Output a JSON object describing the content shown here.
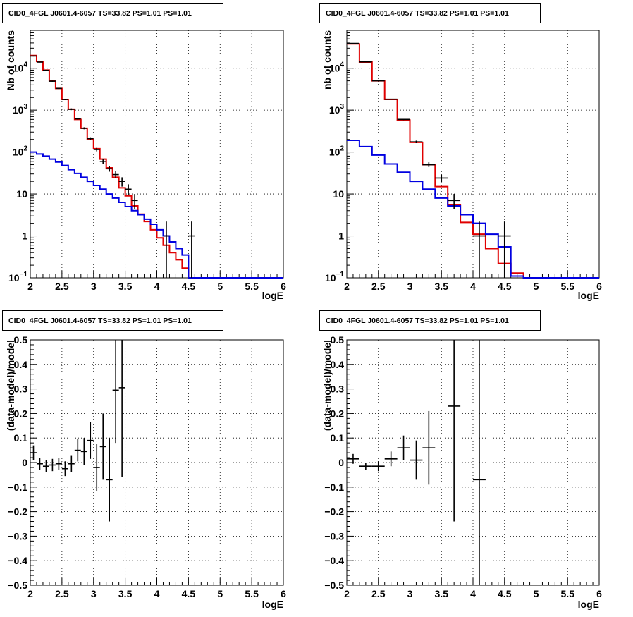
{
  "chart_data": [
    {
      "type": "line",
      "title": "CID0_4FGL J0601.4-6057 TS=33.82 PS=1.01 PS=1.01",
      "xlabel": "logE",
      "ylabel": "Nb of counts",
      "xlim": [
        2,
        6
      ],
      "ylim": [
        0.1,
        80000
      ],
      "yscale": "log",
      "grid": true,
      "xticks": [
        "2",
        "2.5",
        "3",
        "3.5",
        "4",
        "4.5",
        "5",
        "5.5",
        "6"
      ],
      "yticks": [
        {
          "v": 0.1,
          "base": "10",
          "exp": "−1"
        },
        {
          "v": 1,
          "text": "1"
        },
        {
          "v": 10,
          "text": "10"
        },
        {
          "v": 100,
          "base": "10",
          "exp": "2"
        },
        {
          "v": 1000,
          "base": "10",
          "exp": "3"
        },
        {
          "v": 10000,
          "base": "10",
          "exp": "4"
        }
      ],
      "bin_edges": [
        2.0,
        2.1,
        2.2,
        2.3,
        2.4,
        2.5,
        2.6,
        2.7,
        2.8,
        2.9,
        3.0,
        3.1,
        3.2,
        3.3,
        3.4,
        3.5,
        3.6,
        3.7,
        3.8,
        3.9,
        4.0,
        4.1,
        4.2,
        4.3,
        4.4,
        4.5,
        4.6,
        4.7,
        4.8,
        4.9,
        5.0,
        5.1,
        5.2,
        5.3,
        5.4,
        5.5,
        5.6,
        5.7,
        5.8,
        5.9,
        6.0
      ],
      "series": [
        {
          "color": "#e00000",
          "values": [
            20000,
            14500,
            9000,
            5000,
            3300,
            1800,
            1050,
            600,
            370,
            200,
            120,
            68,
            42,
            25,
            14,
            9,
            5.2,
            3.3,
            2.2,
            1.4,
            0.9,
            0.6,
            0.4,
            0.27,
            0.17,
            0.1,
            0.1,
            0.1,
            0.1,
            0.1,
            0.1,
            0.1,
            0.1,
            0.1,
            0.1,
            0.1,
            0.1,
            0.1,
            0.1,
            0.1
          ]
        },
        {
          "color": "#0000e0",
          "values": [
            100,
            90,
            80,
            68,
            58,
            48,
            38,
            31,
            25,
            20,
            16,
            13,
            10,
            8,
            6.3,
            5,
            4,
            3.2,
            2.5,
            1.9,
            1.4,
            1.0,
            0.72,
            0.5,
            0.35,
            0.1,
            0.1,
            0.1,
            0.1,
            0.1,
            0.1,
            0.1,
            0.1,
            0.1,
            0.1,
            0.1,
            0.1,
            0.1,
            0.1,
            0.1
          ]
        }
      ],
      "points": [
        {
          "x": 2.05,
          "y": 19500,
          "hw": 0.05,
          "lo": 19000,
          "hi": 20000
        },
        {
          "x": 2.15,
          "y": 14000,
          "hw": 0.05,
          "lo": 13700,
          "hi": 14300
        },
        {
          "x": 2.25,
          "y": 8900,
          "hw": 0.05,
          "lo": 8700,
          "hi": 9100
        },
        {
          "x": 2.35,
          "y": 4900,
          "hw": 0.05,
          "lo": 4750,
          "hi": 5050
        },
        {
          "x": 2.45,
          "y": 3300,
          "hw": 0.05,
          "lo": 3200,
          "hi": 3400
        },
        {
          "x": 2.55,
          "y": 1800,
          "hw": 0.05,
          "lo": 1730,
          "hi": 1870
        },
        {
          "x": 2.65,
          "y": 1050,
          "hw": 0.05,
          "lo": 1000,
          "hi": 1100
        },
        {
          "x": 2.75,
          "y": 620,
          "hw": 0.05,
          "lo": 595,
          "hi": 645
        },
        {
          "x": 2.85,
          "y": 370,
          "hw": 0.05,
          "lo": 350,
          "hi": 390
        },
        {
          "x": 2.95,
          "y": 210,
          "hw": 0.05,
          "lo": 195,
          "hi": 225
        },
        {
          "x": 3.05,
          "y": 115,
          "hw": 0.05,
          "lo": 104,
          "hi": 126
        },
        {
          "x": 3.15,
          "y": 60,
          "hw": 0.05,
          "lo": 52,
          "hi": 68
        },
        {
          "x": 3.25,
          "y": 40,
          "hw": 0.05,
          "lo": 34,
          "hi": 46
        },
        {
          "x": 3.35,
          "y": 29,
          "hw": 0.05,
          "lo": 24,
          "hi": 35
        },
        {
          "x": 3.45,
          "y": 20,
          "hw": 0.05,
          "lo": 15,
          "hi": 25
        },
        {
          "x": 3.55,
          "y": 13,
          "hw": 0.05,
          "lo": 9.5,
          "hi": 17
        },
        {
          "x": 3.65,
          "y": 7,
          "hw": 0.05,
          "lo": 4.4,
          "hi": 10
        },
        {
          "x": 4.15,
          "y": 1,
          "hw": 0.05,
          "lo": 0.1,
          "hi": 2.2
        },
        {
          "x": 4.55,
          "y": 1,
          "hw": 0.05,
          "lo": 0.1,
          "hi": 2.2
        }
      ]
    },
    {
      "type": "line",
      "title": "CID0_4FGL J0601.4-6057 TS=33.82 PS=1.01 PS=1.01",
      "xlabel": "logE",
      "ylabel": "nb of counts",
      "xlim": [
        2,
        6
      ],
      "ylim": [
        0.1,
        80000
      ],
      "yscale": "log",
      "grid": true,
      "xticks": [
        "2",
        "2.5",
        "3",
        "3.5",
        "4",
        "4.5",
        "5",
        "5.5",
        "6"
      ],
      "yticks": [
        {
          "v": 0.1,
          "base": "10",
          "exp": "−1"
        },
        {
          "v": 1,
          "text": "1"
        },
        {
          "v": 10,
          "text": "10"
        },
        {
          "v": 100,
          "base": "10",
          "exp": "2"
        },
        {
          "v": 1000,
          "base": "10",
          "exp": "3"
        },
        {
          "v": 10000,
          "base": "10",
          "exp": "4"
        }
      ],
      "bin_edges": [
        2.0,
        2.2,
        2.4,
        2.6,
        2.8,
        3.0,
        3.2,
        3.4,
        3.6,
        3.8,
        4.0,
        4.2,
        4.4,
        4.6,
        4.8,
        5.0,
        5.2,
        5.4,
        5.6,
        5.8,
        6.0
      ],
      "series": [
        {
          "color": "#e00000",
          "values": [
            38000,
            14000,
            5000,
            1800,
            580,
            170,
            50,
            15,
            5.5,
            2.1,
            1.1,
            0.5,
            0.22,
            0.13,
            0.1,
            0.1,
            0.1,
            0.1,
            0.1,
            0.1
          ]
        },
        {
          "color": "#0000e0",
          "values": [
            190,
            135,
            85,
            52,
            33,
            20,
            13,
            8,
            5.2,
            3.2,
            2,
            1.1,
            0.55,
            0.11,
            0.1,
            0.1,
            0.1,
            0.1,
            0.1,
            0.1
          ]
        }
      ],
      "points": [
        {
          "x": 2.1,
          "y": 39000,
          "hw": 0.1,
          "lo": 38500,
          "hi": 39500
        },
        {
          "x": 2.3,
          "y": 14200,
          "hw": 0.1,
          "lo": 14000,
          "hi": 14400
        },
        {
          "x": 2.5,
          "y": 5000,
          "hw": 0.1,
          "lo": 4900,
          "hi": 5100
        },
        {
          "x": 2.7,
          "y": 1820,
          "hw": 0.1,
          "lo": 1780,
          "hi": 1860
        },
        {
          "x": 2.9,
          "y": 600,
          "hw": 0.1,
          "lo": 580,
          "hi": 620
        },
        {
          "x": 3.1,
          "y": 175,
          "hw": 0.1,
          "lo": 163,
          "hi": 187
        },
        {
          "x": 3.3,
          "y": 50,
          "hw": 0.1,
          "lo": 44,
          "hi": 57
        },
        {
          "x": 3.5,
          "y": 24,
          "hw": 0.1,
          "lo": 19,
          "hi": 29
        },
        {
          "x": 3.7,
          "y": 7,
          "hw": 0.1,
          "lo": 4.4,
          "hi": 10
        },
        {
          "x": 4.1,
          "y": 1,
          "hw": 0.1,
          "lo": 0.1,
          "hi": 2.2
        },
        {
          "x": 4.5,
          "y": 1,
          "hw": 0.1,
          "lo": 0.1,
          "hi": 2.2
        }
      ]
    },
    {
      "type": "scatter",
      "title": "CID0_4FGL J0601.4-6057 TS=33.82 PS=1.01 PS=1.01",
      "xlabel": "logE",
      "ylabel": "(data-model)/model",
      "xlim": [
        2,
        6
      ],
      "ylim": [
        -0.5,
        0.5
      ],
      "yscale": "linear",
      "grid": true,
      "xticks": [
        "2",
        "2.5",
        "3",
        "3.5",
        "4",
        "4.5",
        "5",
        "5.5",
        "6"
      ],
      "yticks": [
        {
          "v": -0.5,
          "text": "−0.5"
        },
        {
          "v": -0.4,
          "text": "−0.4"
        },
        {
          "v": -0.3,
          "text": "−0.3"
        },
        {
          "v": -0.2,
          "text": "−0.2"
        },
        {
          "v": -0.1,
          "text": "−0.1"
        },
        {
          "v": 0,
          "text": "0"
        },
        {
          "v": 0.1,
          "text": "0.1"
        },
        {
          "v": 0.2,
          "text": "0.2"
        },
        {
          "v": 0.3,
          "text": "0.3"
        },
        {
          "v": 0.4,
          "text": "0.4"
        },
        {
          "v": 0.5,
          "text": "0.5"
        }
      ],
      "points": [
        {
          "x": 2.05,
          "y": 0.04,
          "hw": 0.05,
          "lo": 0.01,
          "hi": 0.07
        },
        {
          "x": 2.15,
          "y": -0.005,
          "hw": 0.05,
          "lo": -0.03,
          "hi": 0.02
        },
        {
          "x": 2.25,
          "y": -0.015,
          "hw": 0.05,
          "lo": -0.04,
          "hi": 0.01
        },
        {
          "x": 2.35,
          "y": -0.01,
          "hw": 0.05,
          "lo": -0.035,
          "hi": 0.015
        },
        {
          "x": 2.45,
          "y": -0.005,
          "hw": 0.05,
          "lo": -0.03,
          "hi": 0.02
        },
        {
          "x": 2.55,
          "y": -0.025,
          "hw": 0.05,
          "lo": -0.055,
          "hi": 0.005
        },
        {
          "x": 2.65,
          "y": -0.005,
          "hw": 0.05,
          "lo": -0.04,
          "hi": 0.03
        },
        {
          "x": 2.75,
          "y": 0.05,
          "hw": 0.05,
          "lo": 0.005,
          "hi": 0.095
        },
        {
          "x": 2.85,
          "y": 0.045,
          "hw": 0.05,
          "lo": -0.01,
          "hi": 0.1
        },
        {
          "x": 2.95,
          "y": 0.09,
          "hw": 0.05,
          "lo": 0.015,
          "hi": 0.165
        },
        {
          "x": 3.05,
          "y": -0.02,
          "hw": 0.05,
          "lo": -0.115,
          "hi": 0.075
        },
        {
          "x": 3.15,
          "y": 0.065,
          "hw": 0.05,
          "lo": -0.07,
          "hi": 0.2
        },
        {
          "x": 3.25,
          "y": -0.07,
          "hw": 0.05,
          "lo": -0.24,
          "hi": 0.1
        },
        {
          "x": 3.35,
          "y": 0.295,
          "hw": 0.05,
          "lo": 0.08,
          "hi": 0.5
        },
        {
          "x": 3.45,
          "y": 0.305,
          "hw": 0.05,
          "lo": -0.06,
          "hi": 0.5
        }
      ]
    },
    {
      "type": "scatter",
      "title": "CID0_4FGL J0601.4-6057 TS=33.82 PS=1.01 PS=1.01",
      "xlabel": "logE",
      "ylabel": "(data-model)/model",
      "xlim": [
        2,
        6
      ],
      "ylim": [
        -0.5,
        0.5
      ],
      "yscale": "linear",
      "grid": true,
      "xticks": [
        "2",
        "2.5",
        "3",
        "3.5",
        "4",
        "4.5",
        "5",
        "5.5",
        "6"
      ],
      "yticks": [
        {
          "v": -0.5,
          "text": "−0.5"
        },
        {
          "v": -0.4,
          "text": "−0.4"
        },
        {
          "v": -0.3,
          "text": "−0.3"
        },
        {
          "v": -0.2,
          "text": "−0.2"
        },
        {
          "v": -0.1,
          "text": "−0.1"
        },
        {
          "v": 0,
          "text": "0"
        },
        {
          "v": 0.1,
          "text": "0.1"
        },
        {
          "v": 0.2,
          "text": "0.2"
        },
        {
          "v": 0.3,
          "text": "0.3"
        },
        {
          "v": 0.4,
          "text": "0.4"
        },
        {
          "v": 0.5,
          "text": "0.5"
        }
      ],
      "points": [
        {
          "x": 2.1,
          "y": 0.015,
          "hw": 0.1,
          "lo": -0.005,
          "hi": 0.035
        },
        {
          "x": 2.3,
          "y": -0.015,
          "hw": 0.1,
          "lo": -0.03,
          "hi": 0.0
        },
        {
          "x": 2.5,
          "y": -0.015,
          "hw": 0.1,
          "lo": -0.035,
          "hi": 0.005
        },
        {
          "x": 2.7,
          "y": 0.015,
          "hw": 0.1,
          "lo": -0.015,
          "hi": 0.045
        },
        {
          "x": 2.9,
          "y": 0.06,
          "hw": 0.1,
          "lo": 0.01,
          "hi": 0.11
        },
        {
          "x": 3.1,
          "y": 0.01,
          "hw": 0.1,
          "lo": -0.07,
          "hi": 0.09
        },
        {
          "x": 3.3,
          "y": 0.06,
          "hw": 0.1,
          "lo": -0.09,
          "hi": 0.21
        },
        {
          "x": 3.7,
          "y": 0.23,
          "hw": 0.1,
          "lo": -0.24,
          "hi": 0.5
        },
        {
          "x": 4.1,
          "y": -0.07,
          "hw": 0.1,
          "lo": -0.5,
          "hi": 0.5
        }
      ]
    }
  ]
}
